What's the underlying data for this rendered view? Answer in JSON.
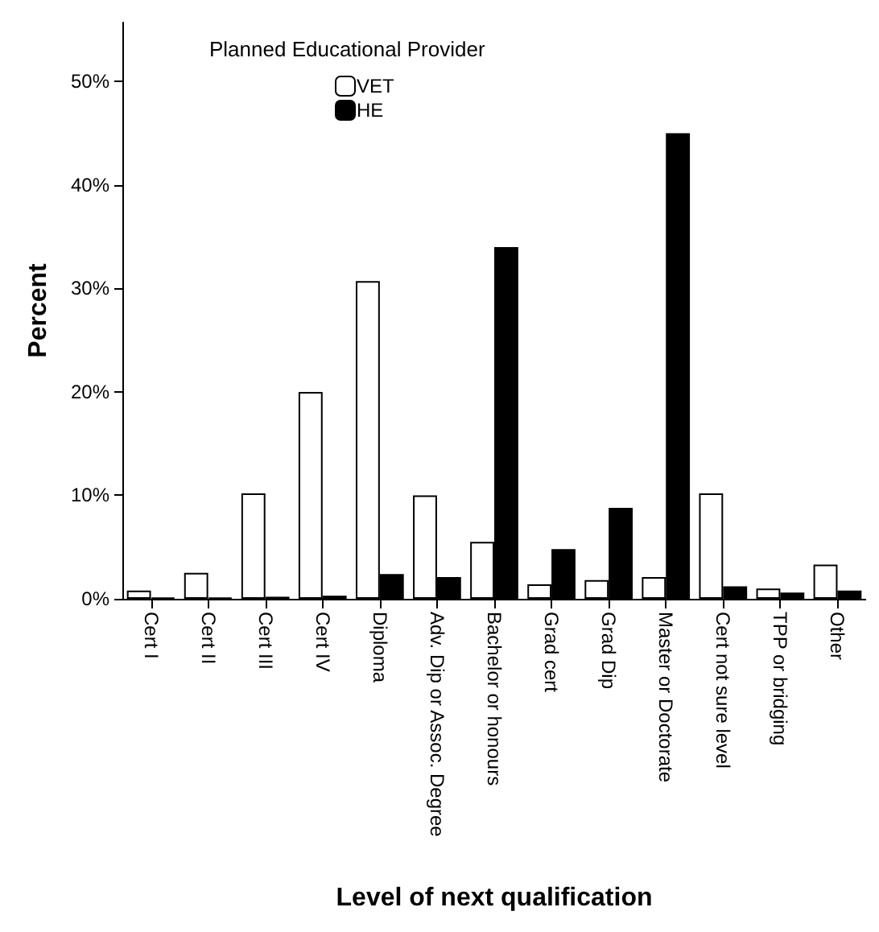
{
  "chart_data": {
    "type": "bar",
    "xlabel": "Level of next qualification",
    "ylabel": "Percent",
    "legend_title": "Planned Educational Provider",
    "legend": "top left",
    "categories": [
      "Cert I",
      "Cert II",
      "Cert III",
      "Cert IV",
      "Diploma",
      "Adv. Dip or Assoc. Degree",
      "Bachelor or honours",
      "Grad cert",
      "Grad Dip",
      "Master or Doctorate",
      "Cert not sure level",
      "TPP or bridging",
      "Other"
    ],
    "series": [
      {
        "name": "VET",
        "color": "#ffffff",
        "values": [
          0.8,
          2.5,
          10.2,
          20.0,
          30.7,
          10.0,
          5.5,
          1.4,
          1.8,
          2.1,
          10.2,
          1.0,
          3.3
        ]
      },
      {
        "name": "HE",
        "color": "#000000",
        "values": [
          0.1,
          0.1,
          0.2,
          0.3,
          2.4,
          2.1,
          34.0,
          4.8,
          8.8,
          45.0,
          1.2,
          0.6,
          0.8
        ]
      }
    ],
    "ylim": [
      0,
      55.7
    ],
    "yticks": [
      {
        "value": 0,
        "label": "0%"
      },
      {
        "value": 10,
        "label": "10%"
      },
      {
        "value": 20,
        "label": "20%"
      },
      {
        "value": 30,
        "label": "30%"
      },
      {
        "value": 40,
        "label": "40%"
      },
      {
        "value": 50,
        "label": "50%"
      }
    ],
    "grid": false
  }
}
